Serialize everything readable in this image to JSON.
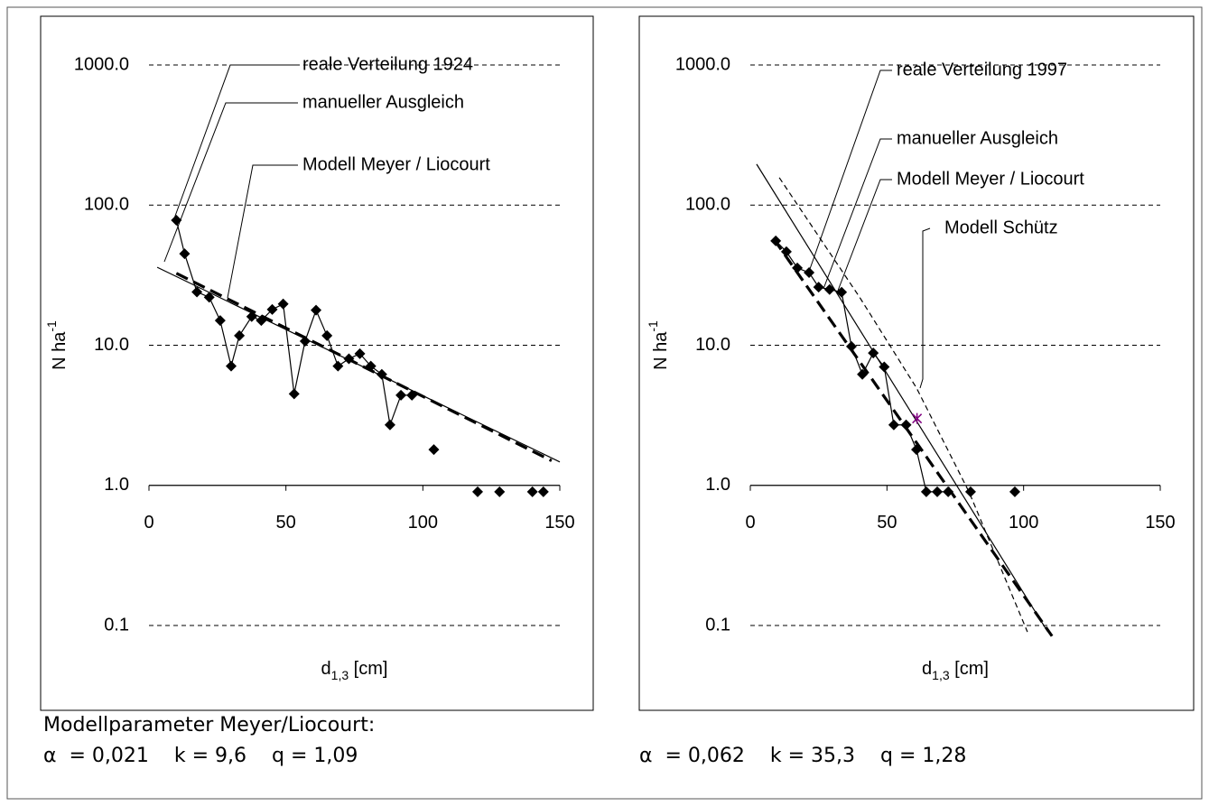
{
  "chart_data": [
    {
      "type": "line",
      "ylog": true,
      "xlim": [
        0,
        150
      ],
      "ylim": [
        0.1,
        1000
      ],
      "xticks": [
        0,
        50,
        100,
        150
      ],
      "yticks": [
        {
          "value": 1000,
          "label": "1000.0"
        },
        {
          "value": 100,
          "label": "100.0"
        },
        {
          "value": 10,
          "label": "10.0"
        },
        {
          "value": 1,
          "label": "1.0"
        },
        0.1
      ],
      "grid": true,
      "x_axis_at": 1,
      "ylabel": "N ha",
      "ylabel_sup": "-1",
      "xlabel": "d",
      "xlabel_sub": "1,3",
      "xlabel_unit": " [cm]",
      "series": [
        {
          "name": "reale Verteilung 1924",
          "color": "#000000",
          "line_style": "solid",
          "marker": "diamond",
          "x": [
            10,
            13,
            17.5,
            22,
            26,
            30,
            33,
            37.5,
            41,
            45,
            49,
            53,
            57,
            61,
            65,
            69,
            73,
            77,
            81,
            85,
            88,
            92,
            96,
            null,
            104,
            null,
            120,
            null,
            128,
            null,
            140,
            null,
            144
          ],
          "values": [
            78,
            45,
            24,
            22,
            15,
            7.1,
            11.7,
            16,
            15,
            18,
            19.7,
            4.5,
            10.7,
            17.8,
            11.7,
            7.1,
            8,
            8.7,
            7.1,
            6.2,
            2.7,
            4.4,
            4.4,
            null,
            1.8,
            null,
            0.9,
            null,
            0.9,
            null,
            0.9,
            null,
            0.9
          ]
        },
        {
          "name": "manueller Ausgleich",
          "color": "#000000",
          "line_style": "solid",
          "marker": "none",
          "x": [
            3,
            150
          ],
          "values": [
            36,
            1.47
          ]
        },
        {
          "name": "Modell Meyer / Liocourt",
          "color": "#000000",
          "line_style": "dashed-bold",
          "marker": "none",
          "x": [
            10,
            147
          ],
          "values": [
            32.6,
            1.5
          ]
        }
      ]
    },
    {
      "type": "line",
      "ylog": true,
      "xlim": [
        0,
        150
      ],
      "ylim": [
        0.1,
        1000
      ],
      "xticks": [
        0,
        50,
        100,
        150
      ],
      "yticks": [
        {
          "value": 1000,
          "label": "1000.0"
        },
        {
          "value": 100,
          "label": "100.0"
        },
        {
          "value": 10,
          "label": "10.0"
        },
        {
          "value": 1,
          "label": "1.0"
        },
        0.1
      ],
      "grid": true,
      "x_axis_at": 1,
      "ylabel": "N ha",
      "ylabel_sup": "-1",
      "xlabel": "d",
      "xlabel_sub": "1,3",
      "xlabel_unit": " [cm]",
      "series": [
        {
          "name": "reale Verteilung 1997",
          "color": "#000000",
          "line_style": "solid",
          "marker": "diamond",
          "x": [
            9.3,
            13.2,
            17.2,
            21.5,
            25,
            29,
            33.4,
            37,
            41,
            45,
            49,
            52.5,
            57,
            60.8,
            64.4,
            68.4,
            72.4,
            null,
            80.6,
            null,
            96.8
          ],
          "values": [
            55.6,
            46.5,
            35.6,
            33,
            26,
            25,
            23.9,
            9.8,
            6.2,
            8.8,
            7,
            2.7,
            2.7,
            1.8,
            0.9,
            0.9,
            0.9,
            null,
            0.9,
            null,
            0.9
          ]
        },
        {
          "name": "manueller Ausgleich",
          "color": "#000000",
          "line_style": "solid",
          "marker": "none",
          "x": [
            2.3,
            108.7
          ],
          "values": [
            196,
            0.091
          ]
        },
        {
          "name": "Modell Meyer / Liocourt",
          "color": "#000000",
          "line_style": "dashed-bold",
          "marker": "none",
          "x": [
            8.6,
            110.4
          ],
          "values": [
            57.2,
            0.084
          ]
        },
        {
          "name": "Modell Schütz",
          "color": "#000000",
          "line_style": "dashed",
          "marker": "none",
          "x": [
            10.6,
            40,
            60.8,
            80,
            101.4
          ],
          "values": [
            157,
            22,
            4.96,
            0.9,
            0.09
          ]
        },
        {
          "color": "#800080",
          "line_style": "none",
          "marker": "asterisk",
          "x": [
            61
          ],
          "values": [
            3
          ]
        }
      ]
    }
  ],
  "parameters": {
    "heading": "Modellparameter Meyer/Liocourt:",
    "left": "α  = 0,021    k = 9,6    q = 1,09",
    "right": "α  = 0,062    k = 35,3    q = 1,28"
  }
}
